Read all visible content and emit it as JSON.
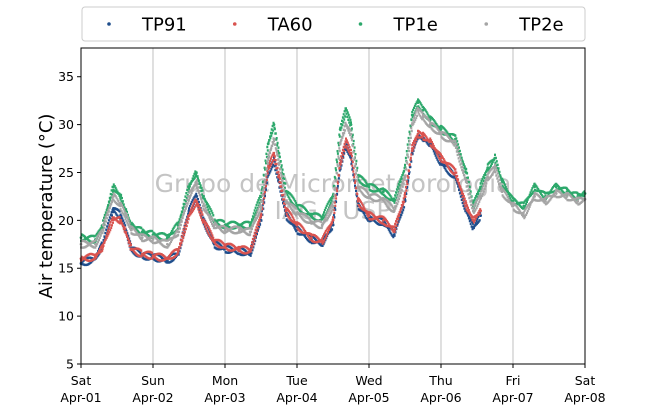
{
  "chart_data": {
    "type": "scatter",
    "title": "",
    "xlabel": "",
    "ylabel": "Air temperature (°C)",
    "ylim": [
      5,
      38
    ],
    "yticks": [
      5,
      10,
      15,
      20,
      25,
      30,
      35
    ],
    "xlim": [
      0,
      7
    ],
    "xticks": [
      {
        "x": 0,
        "day": "Sat",
        "date": "Apr-01"
      },
      {
        "x": 1,
        "day": "Sun",
        "date": "Apr-02"
      },
      {
        "x": 2,
        "day": "Mon",
        "date": "Apr-03"
      },
      {
        "x": 3,
        "day": "Tue",
        "date": "Apr-04"
      },
      {
        "x": 4,
        "day": "Wed",
        "date": "Apr-05"
      },
      {
        "x": 5,
        "day": "Thu",
        "date": "Apr-06"
      },
      {
        "x": 6,
        "day": "Fri",
        "date": "Apr-07"
      },
      {
        "x": 7,
        "day": "Sat",
        "date": "Apr-08"
      }
    ],
    "grid": "x",
    "legend_position": "top",
    "watermark": [
      "Grupo de Micrometeorologia",
      "IAG / USP"
    ],
    "series": [
      {
        "name": "TP91",
        "color": "#1f4e8c",
        "x": [
          0,
          0.2,
          0.3,
          0.45,
          0.55,
          0.62,
          0.7,
          0.85,
          1.0,
          1.2,
          1.35,
          1.5,
          1.6,
          1.7,
          1.85,
          2.0,
          2.2,
          2.35,
          2.5,
          2.6,
          2.68,
          2.75,
          2.85,
          3.0,
          3.2,
          3.35,
          3.5,
          3.6,
          3.68,
          3.75,
          3.85,
          4.0,
          4.2,
          4.35,
          4.5,
          4.6,
          4.68,
          4.75,
          4.85,
          5.0,
          5.2,
          5.35,
          5.45,
          5.55
        ],
        "y": [
          15.5,
          16.0,
          17.5,
          21.2,
          20.5,
          19.0,
          17.0,
          16.3,
          16.2,
          15.8,
          16.5,
          21.0,
          22.5,
          20.0,
          17.5,
          17.0,
          16.8,
          16.5,
          20.0,
          25.0,
          26.2,
          24.0,
          20.5,
          19.0,
          18.0,
          17.6,
          19.5,
          25.5,
          27.8,
          26.5,
          21.5,
          20.2,
          19.8,
          18.5,
          22.0,
          27.0,
          28.8,
          28.5,
          28.0,
          26.0,
          24.5,
          21.0,
          19.2,
          20.5
        ]
      },
      {
        "name": "TA60",
        "color": "#d9534f",
        "x": [
          0,
          0.2,
          0.3,
          0.45,
          0.55,
          0.62,
          0.7,
          0.85,
          1.0,
          1.2,
          1.35,
          1.5,
          1.6,
          1.7,
          1.85,
          2.0,
          2.2,
          2.35,
          2.5,
          2.6,
          2.68,
          2.75,
          2.85,
          3.0,
          3.2,
          3.35,
          3.5,
          3.6,
          3.68,
          3.75,
          3.85,
          4.0,
          4.2,
          4.35,
          4.5,
          4.6,
          4.68,
          4.75,
          4.85,
          5.0,
          5.2,
          5.35,
          5.45,
          5.55
        ],
        "y": [
          16.0,
          16.2,
          17.2,
          20.2,
          20.0,
          18.8,
          17.0,
          16.5,
          16.3,
          16.0,
          16.8,
          20.5,
          22.0,
          20.0,
          17.8,
          17.3,
          17.0,
          16.8,
          20.5,
          25.5,
          26.8,
          24.5,
          21.0,
          19.5,
          18.2,
          17.8,
          20.0,
          26.0,
          28.2,
          27.0,
          22.0,
          20.5,
          20.0,
          19.0,
          22.5,
          27.5,
          29.0,
          28.8,
          28.2,
          26.5,
          25.0,
          21.5,
          20.0,
          21.0
        ]
      },
      {
        "name": "TP1e",
        "color": "#2ca86b",
        "x": [
          0,
          0.2,
          0.3,
          0.45,
          0.55,
          0.62,
          0.7,
          0.85,
          1.0,
          1.2,
          1.35,
          1.5,
          1.6,
          1.7,
          1.85,
          2.0,
          2.2,
          2.35,
          2.5,
          2.6,
          2.68,
          2.75,
          2.85,
          3.0,
          3.2,
          3.35,
          3.5,
          3.6,
          3.68,
          3.75,
          3.85,
          4.0,
          4.2,
          4.35,
          4.5,
          4.6,
          4.68,
          4.75,
          4.85,
          5.0,
          5.2,
          5.35,
          5.45,
          5.55,
          5.65,
          5.75,
          5.85,
          6.0,
          6.15,
          6.3,
          6.45,
          6.6,
          6.75,
          6.9,
          7.0
        ],
        "y": [
          18.2,
          18.0,
          19.5,
          23.5,
          22.5,
          21.0,
          19.5,
          18.8,
          18.5,
          18.2,
          19.5,
          23.5,
          25.0,
          22.5,
          20.0,
          19.5,
          19.5,
          19.5,
          22.5,
          28.0,
          30.0,
          27.0,
          23.0,
          21.5,
          20.5,
          20.2,
          22.5,
          29.5,
          31.5,
          30.0,
          24.5,
          23.5,
          23.0,
          22.0,
          25.5,
          31.0,
          32.3,
          31.5,
          30.5,
          29.5,
          28.5,
          25.0,
          21.5,
          23.5,
          25.5,
          26.5,
          24.0,
          22.0,
          21.5,
          23.5,
          22.5,
          23.5,
          23.0,
          22.5,
          22.8
        ]
      },
      {
        "name": "TP2e",
        "color": "#a5a5a5",
        "x": [
          0,
          0.2,
          0.3,
          0.45,
          0.55,
          0.62,
          0.7,
          0.85,
          1.0,
          1.2,
          1.35,
          1.5,
          1.6,
          1.7,
          1.85,
          2.0,
          2.2,
          2.35,
          2.5,
          2.6,
          2.68,
          2.75,
          2.85,
          3.0,
          3.2,
          3.35,
          3.5,
          3.6,
          3.68,
          3.75,
          3.85,
          4.0,
          4.2,
          4.35,
          4.5,
          4.6,
          4.68,
          4.75,
          4.85,
          5.0,
          5.2,
          5.35,
          5.45,
          5.55,
          5.65,
          5.75,
          5.85,
          6.0,
          6.15,
          6.3,
          6.45,
          6.6,
          6.75,
          6.9,
          7.0
        ],
        "y": [
          17.5,
          17.5,
          19.0,
          22.5,
          21.5,
          20.5,
          19.0,
          18.2,
          18.0,
          17.5,
          18.8,
          22.5,
          24.0,
          21.5,
          19.5,
          19.0,
          19.0,
          18.8,
          21.5,
          26.5,
          28.5,
          26.0,
          22.0,
          20.8,
          19.8,
          19.5,
          21.5,
          28.0,
          30.0,
          29.0,
          23.5,
          22.5,
          22.2,
          21.0,
          24.5,
          30.0,
          31.5,
          30.8,
          30.0,
          29.0,
          28.0,
          24.0,
          21.0,
          22.5,
          24.5,
          25.5,
          23.0,
          21.5,
          20.5,
          22.5,
          22.0,
          22.8,
          22.5,
          22.0,
          22.2
        ]
      }
    ]
  }
}
